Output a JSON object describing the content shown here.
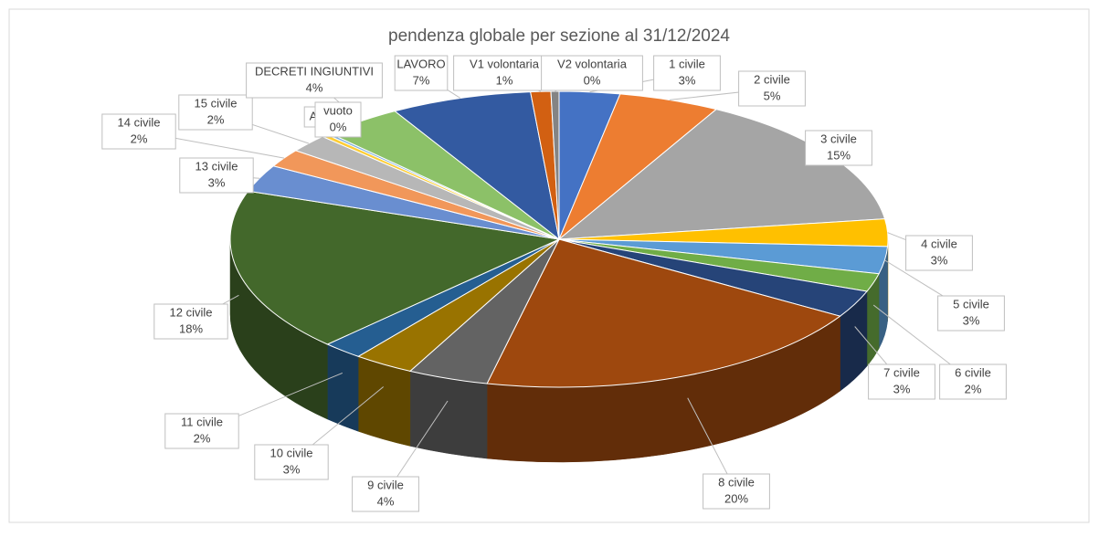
{
  "chart_data": {
    "type": "pie3d",
    "title": "pendenza globale per sezione al 31/12/2024",
    "categories": [
      "1 civile",
      "2 civile",
      "3 civile",
      "4 civile",
      "5 civile",
      "6 civile",
      "7 civile",
      "8 civile",
      "9 civile",
      "10 civile",
      "11 civile",
      "12 civile",
      "13 civile",
      "14 civile",
      "15 civile",
      "A",
      "vuoto",
      "DECRETI INGIUNTIVI",
      "LAVORO",
      "V1 volontaria",
      "V2 volontaria"
    ],
    "values": [
      3,
      5,
      15,
      3,
      3,
      2,
      3,
      20,
      4,
      3,
      2,
      18,
      3,
      2,
      2,
      0.3,
      0.2,
      4,
      7,
      1,
      0.4
    ],
    "value_labels": [
      "3%",
      "5%",
      "15%",
      "3%",
      "3%",
      "2%",
      "3%",
      "20%",
      "4%",
      "3%",
      "2%",
      "18%",
      "3%",
      "2%",
      "2%",
      null,
      "0%",
      "4%",
      "7%",
      "1%",
      "0%"
    ],
    "colors": [
      "#4472c4",
      "#ed7d31",
      "#a5a5a5",
      "#ffc000",
      "#5b9bd5",
      "#70ad47",
      "#264478",
      "#9e480e",
      "#636363",
      "#997300",
      "#255e91",
      "#43682b",
      "#698ed0",
      "#f1975a",
      "#b7b7b7",
      "#ffcd33",
      "#7cafdd",
      "#8cc168",
      "#335aa1",
      "#d26012",
      "#848484"
    ]
  }
}
